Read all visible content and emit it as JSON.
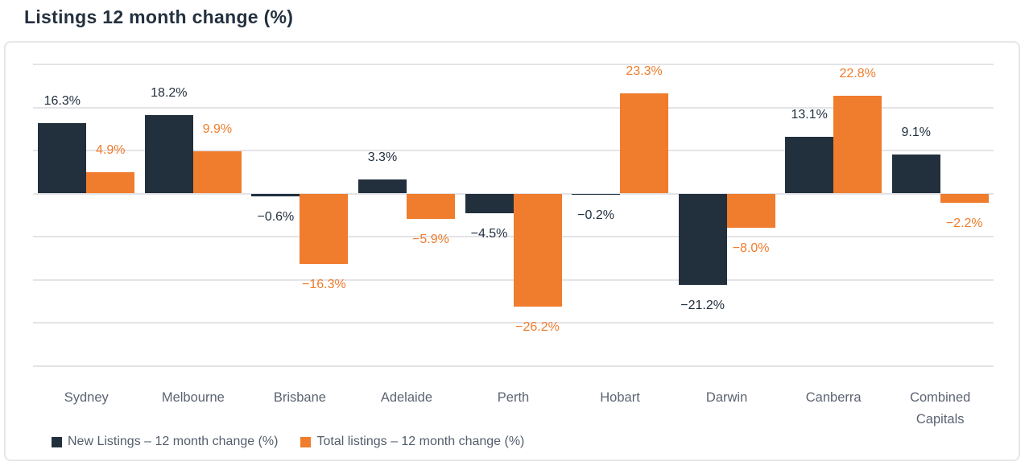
{
  "title": "Listings 12 month change (%)",
  "chart_data": {
    "type": "bar",
    "categories": [
      "Sydney",
      "Melbourne",
      "Brisbane",
      "Adelaide",
      "Perth",
      "Hobart",
      "Darwin",
      "Canberra",
      "Combined Capitals"
    ],
    "series": [
      {
        "name": "New Listings – 12 month change (%)",
        "color": "#22303e",
        "values": [
          16.3,
          18.2,
          -0.6,
          3.3,
          -4.5,
          -0.2,
          -21.2,
          13.1,
          9.1
        ]
      },
      {
        "name": "Total listings – 12 month change (%)",
        "color": "#f07c2d",
        "values": [
          4.9,
          9.9,
          -16.3,
          -5.9,
          -26.2,
          23.3,
          -8.0,
          22.8,
          -2.2
        ]
      }
    ],
    "ylim": [
      -40,
      30
    ],
    "gridline_values": [
      30,
      20,
      10,
      0,
      -10,
      -20,
      -30,
      -40
    ],
    "grid": true,
    "legend_position": "bottom",
    "value_labels": true,
    "value_label_suffix": "%"
  },
  "colors": {
    "title": "#24313f",
    "grid": "#e4e4e8",
    "axis_text": "#5c6471",
    "card_border": "#e7e7ea",
    "background": "#ffffff"
  }
}
